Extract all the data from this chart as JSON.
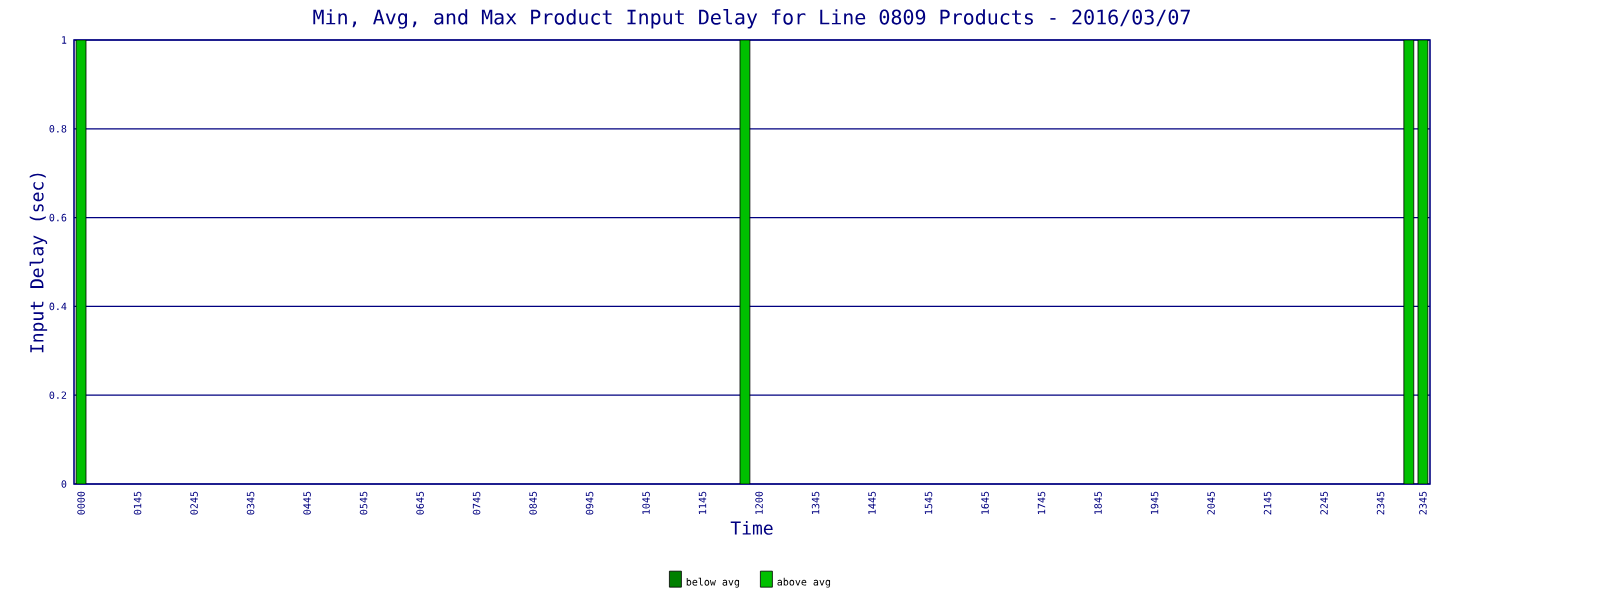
{
  "chart_data": {
    "type": "bar",
    "stacked": true,
    "title": "Min, Avg, and Max Product Input Delay for Line 0809 Products - 2016/03/07",
    "xlabel": "Time",
    "ylabel": "Input Delay (sec)",
    "categories": [
      "0000",
      null,
      null,
      null,
      "0145",
      null,
      null,
      null,
      "0245",
      null,
      null,
      null,
      "0345",
      null,
      null,
      null,
      "0445",
      null,
      null,
      null,
      "0545",
      null,
      null,
      null,
      "0645",
      null,
      null,
      null,
      "0745",
      null,
      null,
      null,
      "0845",
      null,
      null,
      null,
      "0945",
      null,
      null,
      null,
      "1045",
      null,
      null,
      null,
      "1145",
      null,
      null,
      null,
      "1200",
      null,
      null,
      null,
      "1345",
      null,
      null,
      null,
      "1445",
      null,
      null,
      null,
      "1545",
      null,
      null,
      null,
      "1645",
      null,
      null,
      null,
      "1745",
      null,
      null,
      null,
      "1845",
      null,
      null,
      null,
      "1945",
      null,
      null,
      null,
      "2045",
      null,
      null,
      null,
      "2145",
      null,
      null,
      null,
      "2245",
      null,
      null,
      null,
      "2345",
      null,
      null,
      "2345"
    ],
    "series": [
      {
        "name": "below avg",
        "color": "#008000",
        "values": [
          0,
          null,
          null,
          null,
          null,
          null,
          null,
          null,
          null,
          null,
          null,
          null,
          null,
          null,
          null,
          null,
          null,
          null,
          null,
          null,
          null,
          null,
          null,
          null,
          null,
          null,
          null,
          null,
          null,
          null,
          null,
          null,
          null,
          null,
          null,
          null,
          null,
          null,
          null,
          null,
          null,
          null,
          null,
          null,
          null,
          null,
          null,
          0,
          null,
          null,
          null,
          null,
          null,
          null,
          null,
          null,
          null,
          null,
          null,
          null,
          null,
          null,
          null,
          null,
          null,
          null,
          null,
          null,
          null,
          null,
          null,
          null,
          null,
          null,
          null,
          null,
          null,
          null,
          null,
          null,
          null,
          null,
          null,
          null,
          null,
          null,
          null,
          null,
          null,
          null,
          null,
          null,
          null,
          null,
          0,
          0
        ]
      },
      {
        "name": "above avg",
        "color": "#00c000",
        "values": [
          1,
          null,
          null,
          null,
          null,
          null,
          null,
          null,
          null,
          null,
          null,
          null,
          null,
          null,
          null,
          null,
          null,
          null,
          null,
          null,
          null,
          null,
          null,
          null,
          null,
          null,
          null,
          null,
          null,
          null,
          null,
          null,
          null,
          null,
          null,
          null,
          null,
          null,
          null,
          null,
          null,
          null,
          null,
          null,
          null,
          null,
          null,
          1,
          null,
          null,
          null,
          null,
          null,
          null,
          null,
          null,
          null,
          null,
          null,
          null,
          null,
          null,
          null,
          null,
          null,
          null,
          null,
          null,
          null,
          null,
          null,
          null,
          null,
          null,
          null,
          null,
          null,
          null,
          null,
          null,
          null,
          null,
          null,
          null,
          null,
          null,
          null,
          null,
          null,
          null,
          null,
          null,
          null,
          null,
          1,
          1
        ]
      }
    ],
    "ylim": [
      0,
      1
    ],
    "yticks": [
      0,
      0.2,
      0.4,
      0.6,
      0.8,
      1
    ],
    "grid": "y",
    "legend": "bottom"
  }
}
